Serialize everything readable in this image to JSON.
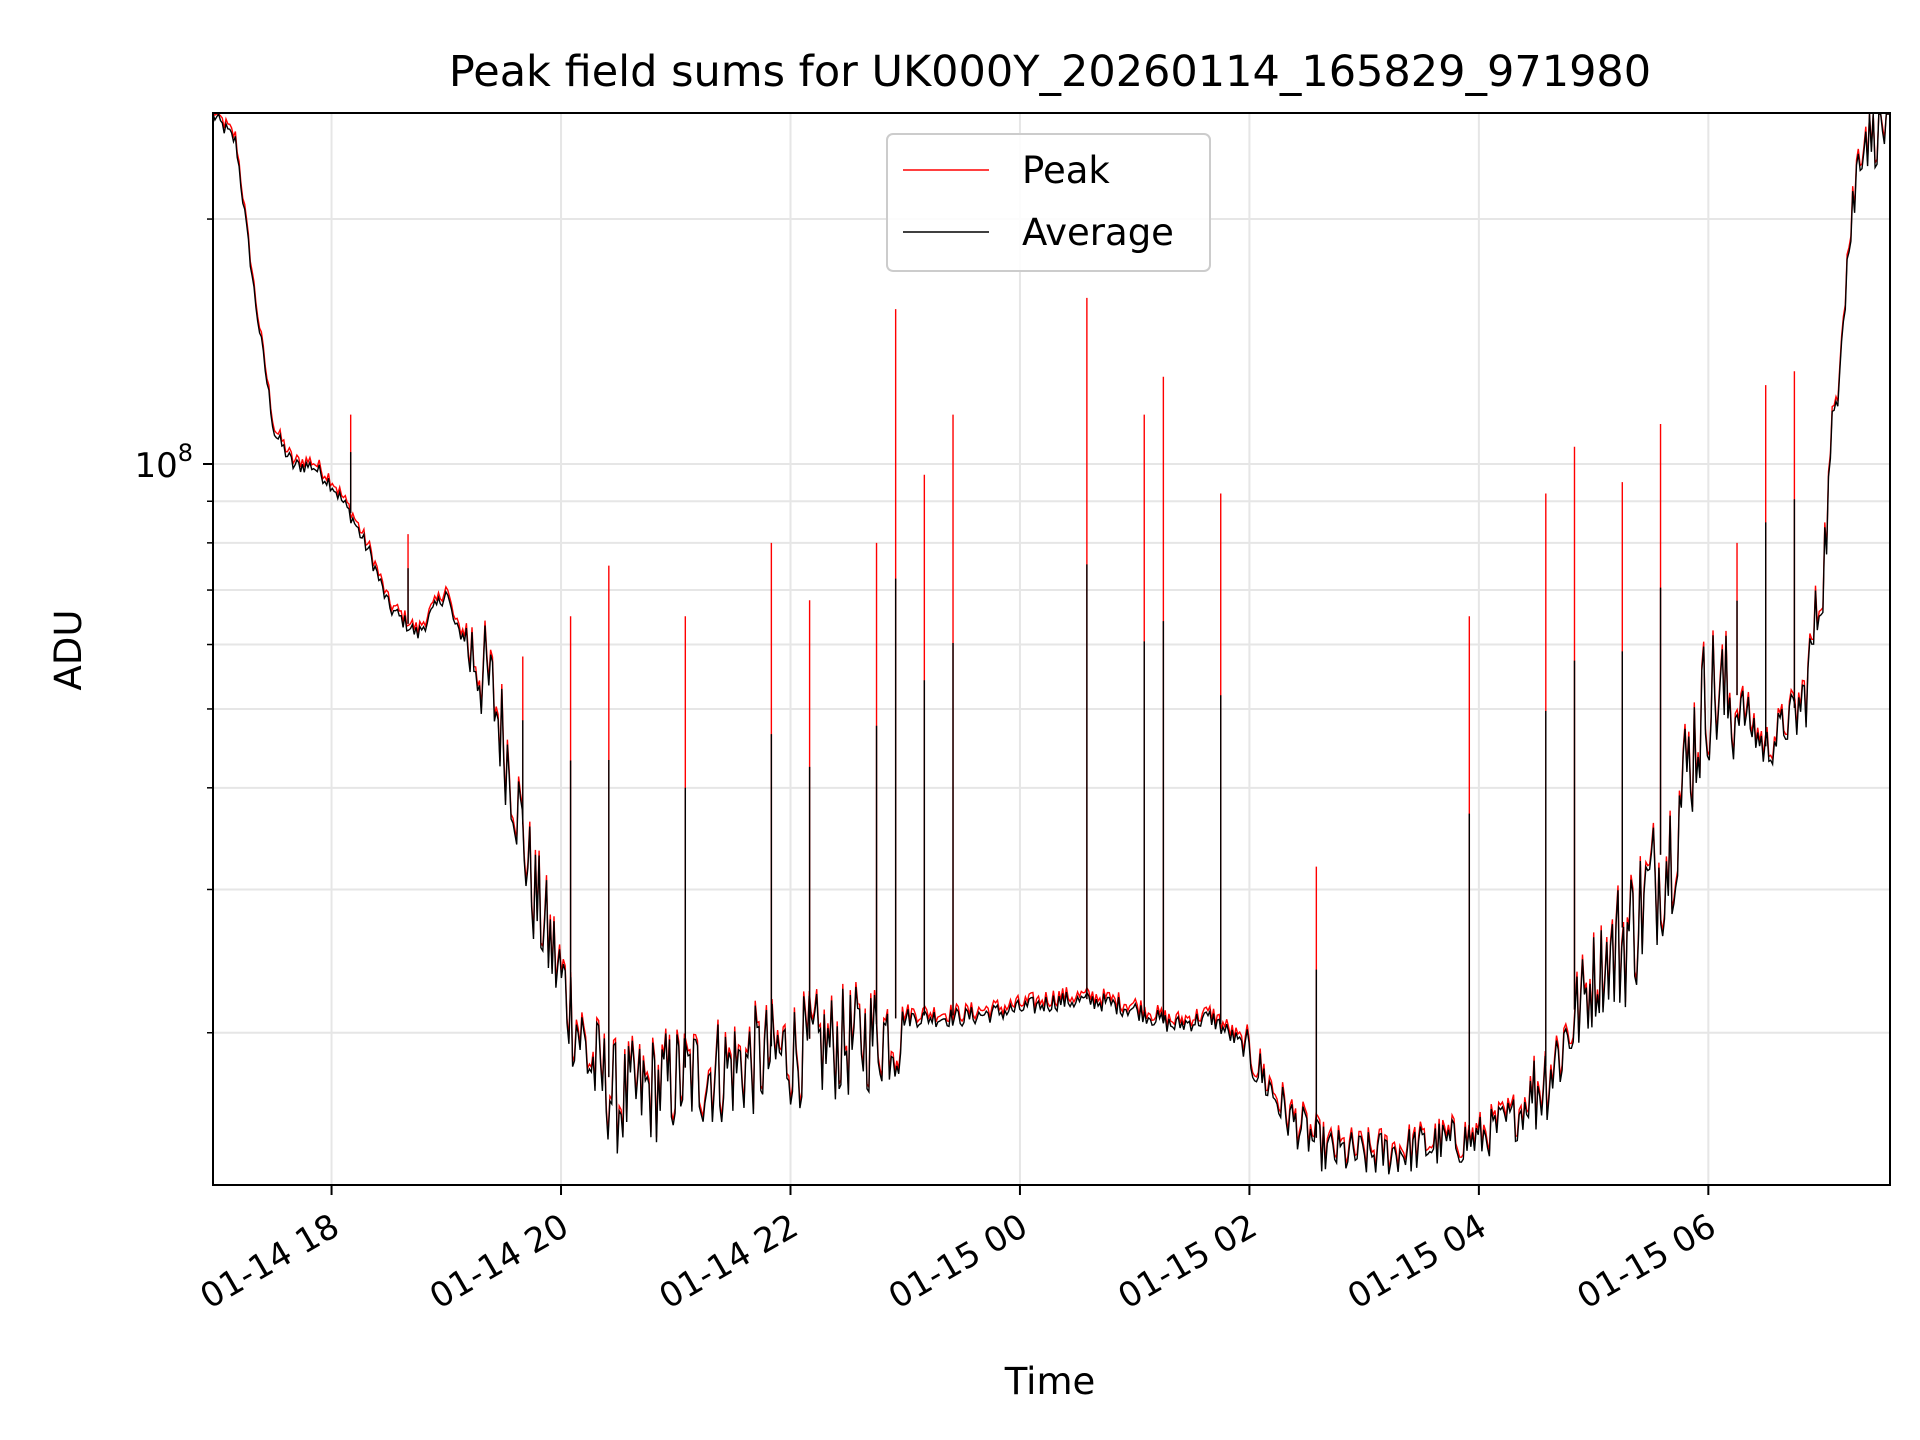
{
  "chart_data": {
    "type": "line",
    "title": "Peak field sums for UK000Y_20260114_165829_971980",
    "xlabel": "Time",
    "ylabel": "ADU",
    "y_scale": "log",
    "grid": true,
    "grid_includes_minor_y": true,
    "legend_position": "upper center",
    "x_range": [
      "2026-01-14 16:58",
      "2026-01-15 07:35"
    ],
    "ylim": [
      13000000,
      270000000
    ],
    "x_ticks": [
      "2026-01-14 18:00",
      "2026-01-14 20:00",
      "2026-01-14 22:00",
      "2026-01-15 00:00",
      "2026-01-15 02:00",
      "2026-01-15 04:00",
      "2026-01-15 06:00"
    ],
    "x_tick_labels": [
      "01-14 18",
      "01-14 20",
      "01-14 22",
      "01-15 00",
      "01-15 02",
      "01-15 04",
      "01-15 06"
    ],
    "y_major_tick": {
      "value": 100000000,
      "label_base": "10",
      "label_exp": "8"
    },
    "y_minor_ticks": [
      20000000,
      30000000,
      40000000,
      50000000,
      60000000,
      70000000,
      80000000,
      90000000,
      200000000
    ],
    "series": [
      {
        "name": "Peak",
        "color": "#ff0000"
      },
      {
        "name": "Average",
        "color": "#000000"
      }
    ],
    "average_series": {
      "x": [
        "2026-01-14 16:58",
        "2026-01-14 17:10",
        "2026-01-14 17:20",
        "2026-01-14 17:30",
        "2026-01-14 17:40",
        "2026-01-14 17:50",
        "2026-01-14 18:00",
        "2026-01-14 18:10",
        "2026-01-14 18:20",
        "2026-01-14 18:30",
        "2026-01-14 18:45",
        "2026-01-14 19:00",
        "2026-01-14 19:05",
        "2026-01-14 19:15",
        "2026-01-14 19:25",
        "2026-01-14 19:35",
        "2026-01-14 19:45",
        "2026-01-14 20:00",
        "2026-01-14 20:15",
        "2026-01-14 20:30",
        "2026-01-14 20:45",
        "2026-01-14 21:00",
        "2026-01-14 21:20",
        "2026-01-14 21:40",
        "2026-01-14 22:00",
        "2026-01-14 22:30",
        "2026-01-14 23:00",
        "2026-01-14 23:30",
        "2026-01-15 00:00",
        "2026-01-15 00:20",
        "2026-01-15 00:40",
        "2026-01-15 01:00",
        "2026-01-15 01:20",
        "2026-01-15 01:40",
        "2026-01-15 02:00",
        "2026-01-15 02:20",
        "2026-01-15 02:40",
        "2026-01-15 03:00",
        "2026-01-15 03:20",
        "2026-01-15 03:40",
        "2026-01-15 04:00",
        "2026-01-15 04:20",
        "2026-01-15 04:40",
        "2026-01-15 05:00",
        "2026-01-15 05:20",
        "2026-01-15 05:40",
        "2026-01-15 05:50",
        "2026-01-15 06:00",
        "2026-01-15 06:15",
        "2026-01-15 06:30",
        "2026-01-15 06:50",
        "2026-01-15 07:00",
        "2026-01-15 07:10",
        "2026-01-15 07:20",
        "2026-01-15 07:35"
      ],
      "values": [
        270000000,
        250000000,
        160000000,
        110000000,
        100000000,
        100000000,
        95000000,
        87000000,
        78000000,
        67000000,
        62000000,
        70000000,
        63000000,
        60000000,
        53000000,
        42000000,
        31000000,
        24000000,
        19000000,
        17000000,
        17500000,
        18000000,
        18500000,
        19000000,
        19500000,
        20000000,
        21000000,
        21000000,
        21500000,
        22000000,
        22000000,
        21500000,
        20500000,
        21000000,
        19000000,
        16000000,
        14500000,
        14300000,
        14500000,
        14800000,
        15000000,
        16000000,
        19000000,
        24000000,
        28000000,
        35000000,
        45000000,
        55000000,
        52000000,
        45000000,
        52000000,
        75000000,
        160000000,
        260000000,
        270000000
      ]
    },
    "peak_spikes": [
      {
        "x": "2026-01-14 18:10",
        "value": 115000000
      },
      {
        "x": "2026-01-14 18:40",
        "value": 82000000
      },
      {
        "x": "2026-01-14 19:40",
        "value": 58000000
      },
      {
        "x": "2026-01-14 20:05",
        "value": 65000000
      },
      {
        "x": "2026-01-14 20:25",
        "value": 75000000
      },
      {
        "x": "2026-01-14 21:05",
        "value": 65000000
      },
      {
        "x": "2026-01-14 21:50",
        "value": 80000000
      },
      {
        "x": "2026-01-14 22:10",
        "value": 68000000
      },
      {
        "x": "2026-01-14 22:45",
        "value": 80000000
      },
      {
        "x": "2026-01-14 22:55",
        "value": 155000000
      },
      {
        "x": "2026-01-14 23:10",
        "value": 97000000
      },
      {
        "x": "2026-01-14 23:25",
        "value": 115000000
      },
      {
        "x": "2026-01-15 00:35",
        "value": 160000000
      },
      {
        "x": "2026-01-15 01:05",
        "value": 115000000
      },
      {
        "x": "2026-01-15 01:15",
        "value": 128000000
      },
      {
        "x": "2026-01-15 01:45",
        "value": 92000000
      },
      {
        "x": "2026-01-15 02:35",
        "value": 32000000
      },
      {
        "x": "2026-01-15 03:55",
        "value": 65000000
      },
      {
        "x": "2026-01-15 04:35",
        "value": 92000000
      },
      {
        "x": "2026-01-15 04:50",
        "value": 105000000
      },
      {
        "x": "2026-01-15 05:15",
        "value": 95000000
      },
      {
        "x": "2026-01-15 05:35",
        "value": 112000000
      },
      {
        "x": "2026-01-15 06:15",
        "value": 80000000
      },
      {
        "x": "2026-01-15 06:30",
        "value": 125000000
      },
      {
        "x": "2026-01-15 06:45",
        "value": 130000000
      },
      {
        "x": "2026-01-15 07:10",
        "value": 160000000
      }
    ]
  }
}
